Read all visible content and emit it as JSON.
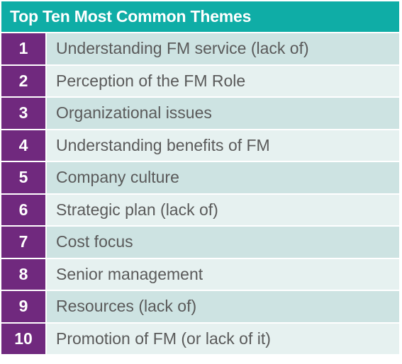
{
  "table": {
    "title": "Top Ten Most Common Themes",
    "rows": [
      {
        "rank": "1",
        "theme": "Understanding FM service (lack of)"
      },
      {
        "rank": "2",
        "theme": "Perception of the FM Role"
      },
      {
        "rank": "3",
        "theme": "Organizational issues"
      },
      {
        "rank": "4",
        "theme": "Understanding benefits of FM"
      },
      {
        "rank": "5",
        "theme": "Company culture"
      },
      {
        "rank": "6",
        "theme": "Strategic plan (lack of)"
      },
      {
        "rank": "7",
        "theme": "Cost focus"
      },
      {
        "rank": "8",
        "theme": "Senior management"
      },
      {
        "rank": "9",
        "theme": "Resources (lack of)"
      },
      {
        "rank": "10",
        "theme": "Promotion of FM (or lack of it)"
      }
    ]
  },
  "colors": {
    "header_bg": "#0fada6",
    "rank_bg": "#70297e",
    "row_odd_bg": "#cde3e2",
    "row_even_bg": "#e6f1f0",
    "text": "#5a5a5a"
  }
}
